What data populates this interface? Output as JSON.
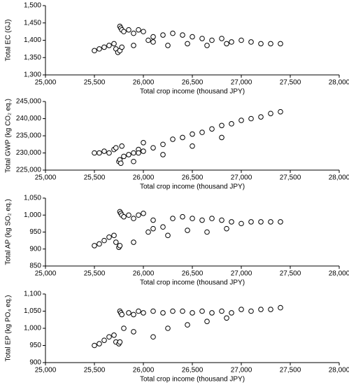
{
  "chart_data": [
    {
      "type": "scatter",
      "x_label": "Total crop income (thousand JPY)",
      "y_label": "Total EC (GJ)",
      "marker_color": "#000000",
      "x": [
        25500,
        25550,
        25600,
        25650,
        25700,
        25720,
        25740,
        25760,
        25760,
        25770,
        25780,
        25780,
        25800,
        25850,
        25900,
        25950,
        26000,
        26050,
        26100,
        26200,
        26300,
        26400,
        26500,
        26600,
        26700,
        26800,
        26900,
        27000,
        27100,
        27200,
        27300,
        27400,
        26250,
        26450,
        26650,
        26850,
        25900,
        26100
      ],
      "y": [
        1370,
        1375,
        1380,
        1385,
        1390,
        1375,
        1365,
        1370,
        1440,
        1435,
        1430,
        1380,
        1425,
        1430,
        1420,
        1430,
        1425,
        1400,
        1410,
        1415,
        1420,
        1415,
        1410,
        1405,
        1400,
        1405,
        1395,
        1400,
        1395,
        1390,
        1390,
        1390,
        1385,
        1390,
        1385,
        1390,
        1385,
        1395
      ],
      "xlim": [
        25000,
        28000
      ],
      "ylim": [
        1300,
        1500
      ],
      "xticks": [
        {
          "value": 25000,
          "label": "25,000"
        },
        {
          "value": 25500,
          "label": "25,500"
        },
        {
          "value": 26000,
          "label": "26,000"
        },
        {
          "value": 26500,
          "label": "26,500"
        },
        {
          "value": 27000,
          "label": "27,000"
        },
        {
          "value": 27500,
          "label": "27,500"
        },
        {
          "value": 28000,
          "label": "28,000"
        }
      ],
      "yticks": [
        {
          "value": 1300,
          "label": "1,300"
        },
        {
          "value": 1350,
          "label": "1,350"
        },
        {
          "value": 1400,
          "label": "1,400"
        },
        {
          "value": 1450,
          "label": "1,450"
        },
        {
          "value": 1500,
          "label": "1,500"
        }
      ]
    },
    {
      "type": "scatter",
      "x_label": "Total crop income (thousand JPY)",
      "y_label": "Total GWP (kg CO₂ eq.)",
      "marker_color": "#000000",
      "x": [
        25500,
        25550,
        25600,
        25650,
        25700,
        25720,
        25750,
        25760,
        25770,
        25780,
        25800,
        25850,
        25900,
        25950,
        26000,
        26100,
        26200,
        26300,
        26400,
        26500,
        26600,
        26700,
        26800,
        26900,
        27000,
        27100,
        27200,
        27300,
        27400,
        26000,
        26200,
        26500,
        26800,
        25950,
        25900
      ],
      "y": [
        230000,
        230000,
        230500,
        230000,
        231000,
        231500,
        227500,
        228000,
        227000,
        232000,
        229000,
        229500,
        230000,
        231000,
        230500,
        231500,
        232500,
        234000,
        234500,
        235500,
        236000,
        237000,
        238000,
        238500,
        239500,
        240000,
        240500,
        241500,
        242000,
        233000,
        229500,
        232000,
        234500,
        230000,
        227500
      ],
      "xlim": [
        25000,
        28000
      ],
      "ylim": [
        225000,
        245000
      ],
      "xticks": [
        {
          "value": 25000,
          "label": "25,000"
        },
        {
          "value": 25500,
          "label": "25,500"
        },
        {
          "value": 26000,
          "label": "26,000"
        },
        {
          "value": 26500,
          "label": "26,500"
        },
        {
          "value": 27000,
          "label": "27,000"
        },
        {
          "value": 27500,
          "label": "27,500"
        },
        {
          "value": 28000,
          "label": "28,000"
        }
      ],
      "yticks": [
        {
          "value": 225000,
          "label": "225,000"
        },
        {
          "value": 230000,
          "label": "230,000"
        },
        {
          "value": 235000,
          "label": "235,000"
        },
        {
          "value": 240000,
          "label": "240,000"
        },
        {
          "value": 245000,
          "label": "245,000"
        }
      ]
    },
    {
      "type": "scatter",
      "x_label": "Total crop income (thousand JPY)",
      "y_label": "Total AP (kg SO₂ eq.)",
      "marker_color": "#000000",
      "x": [
        25500,
        25550,
        25600,
        25650,
        25700,
        25720,
        25750,
        25760,
        25760,
        25770,
        25780,
        25800,
        25850,
        25900,
        25950,
        26000,
        26050,
        26100,
        26200,
        26300,
        26400,
        26500,
        26600,
        26700,
        26800,
        26900,
        27000,
        27100,
        27200,
        27300,
        27400,
        26250,
        26450,
        26650,
        26850,
        25900,
        26100
      ],
      "y": [
        910,
        915,
        925,
        935,
        940,
        920,
        905,
        910,
        1010,
        1005,
        1000,
        995,
        1000,
        990,
        1000,
        1005,
        950,
        960,
        965,
        990,
        995,
        990,
        985,
        990,
        985,
        980,
        975,
        980,
        980,
        980,
        980,
        940,
        955,
        950,
        960,
        920,
        985
      ],
      "xlim": [
        25000,
        28000
      ],
      "ylim": [
        850,
        1050
      ],
      "xticks": [
        {
          "value": 25000,
          "label": "25,000"
        },
        {
          "value": 25500,
          "label": "25,500"
        },
        {
          "value": 26000,
          "label": "26,000"
        },
        {
          "value": 26500,
          "label": "26,500"
        },
        {
          "value": 27000,
          "label": "27,000"
        },
        {
          "value": 27500,
          "label": "27,500"
        },
        {
          "value": 28000,
          "label": "28,000"
        }
      ],
      "yticks": [
        850,
        900,
        950,
        {
          "value": 1000,
          "label": "1,000"
        },
        {
          "value": 1050,
          "label": "1,050"
        }
      ]
    },
    {
      "type": "scatter",
      "x_label": "Total crop income (thousand JPY)",
      "y_label": "Total EP (kg PO₄ eq.)",
      "marker_color": "#000000",
      "x": [
        25500,
        25550,
        25600,
        25650,
        25700,
        25720,
        25750,
        25760,
        25760,
        25770,
        25780,
        25800,
        25850,
        25900,
        25950,
        26000,
        26100,
        26200,
        26300,
        26400,
        26500,
        26600,
        26700,
        26800,
        26900,
        27000,
        27100,
        27200,
        27300,
        27400,
        26250,
        26450,
        26650,
        26850,
        25900,
        26100
      ],
      "y": [
        950,
        955,
        965,
        975,
        980,
        960,
        955,
        960,
        1050,
        1045,
        1040,
        1000,
        1045,
        1040,
        1050,
        1045,
        1050,
        1045,
        1050,
        1050,
        1045,
        1050,
        1045,
        1050,
        1045,
        1055,
        1050,
        1055,
        1055,
        1060,
        1000,
        1010,
        1020,
        1030,
        990,
        975
      ],
      "xlim": [
        25000,
        28000
      ],
      "ylim": [
        900,
        1100
      ],
      "xticks": [
        {
          "value": 25000,
          "label": "25,000"
        },
        {
          "value": 25500,
          "label": "25,500"
        },
        {
          "value": 26000,
          "label": "26,000"
        },
        {
          "value": 26500,
          "label": "26,500"
        },
        {
          "value": 27000,
          "label": "27,000"
        },
        {
          "value": 27500,
          "label": "27,500"
        },
        {
          "value": 28000,
          "label": "28,000"
        }
      ],
      "yticks": [
        900,
        950,
        {
          "value": 1000,
          "label": "1,000"
        },
        {
          "value": 1050,
          "label": "1,050"
        },
        {
          "value": 1100,
          "label": "1,100"
        }
      ]
    }
  ]
}
